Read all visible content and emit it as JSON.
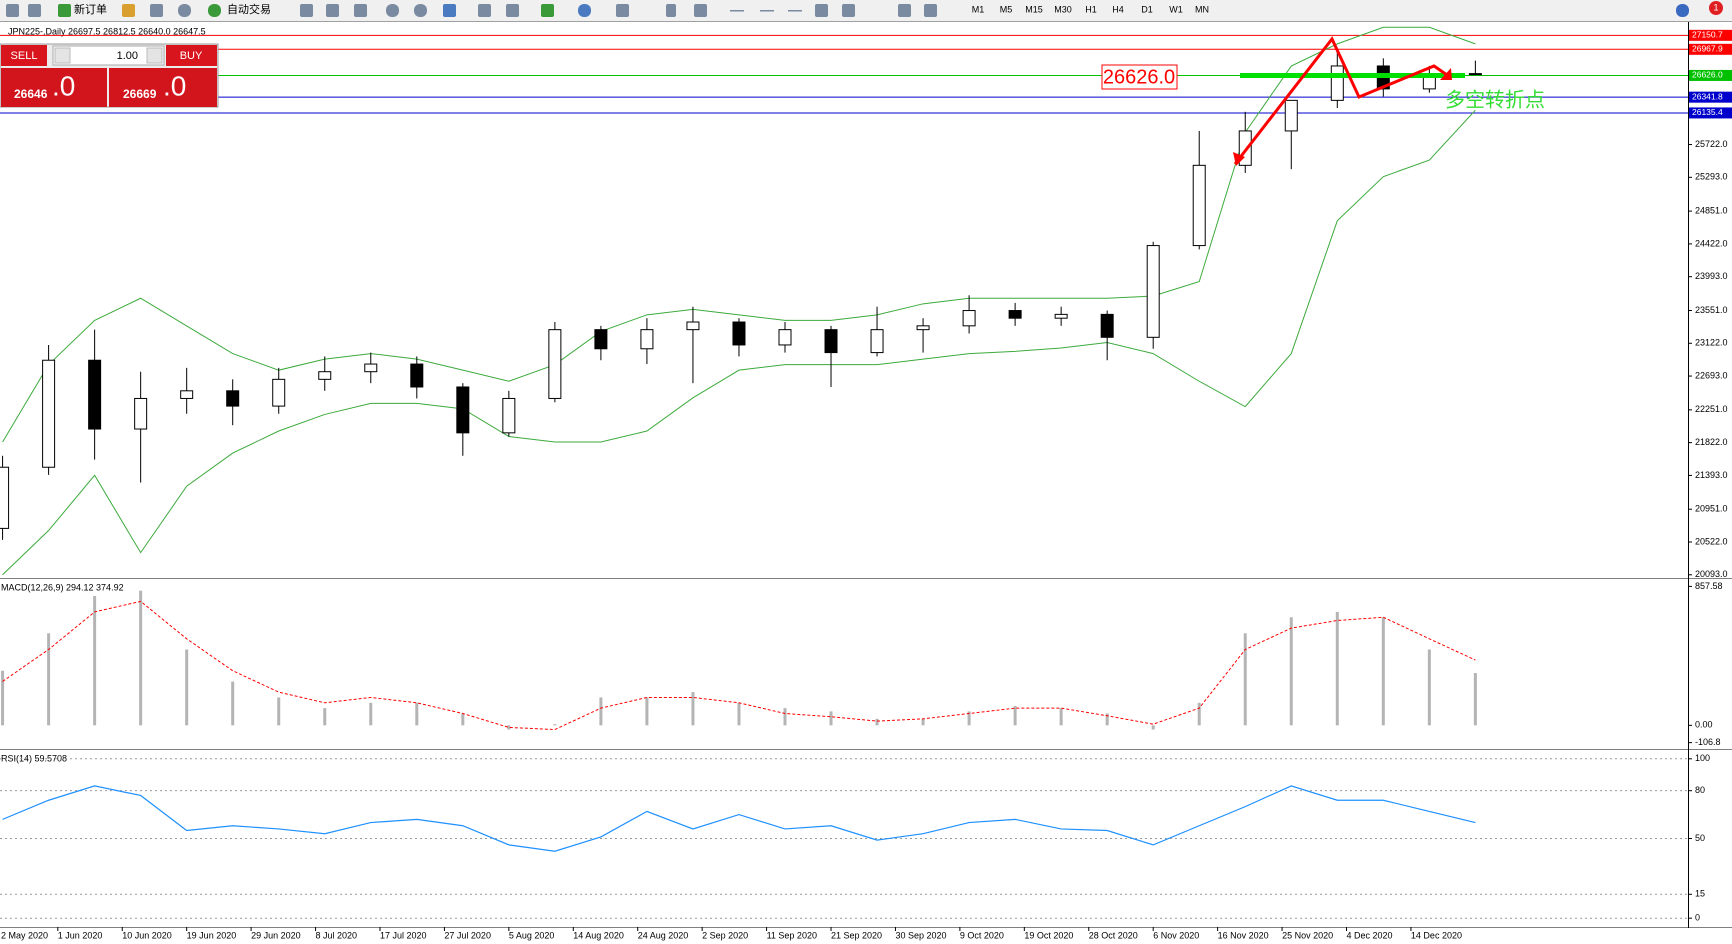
{
  "toolbar": {
    "new_order": "新订单",
    "auto_trading": "自动交易",
    "timeframes": [
      "M1",
      "M5",
      "M15",
      "M30",
      "H1",
      "H4",
      "D1",
      "W1",
      "MN"
    ],
    "notifications": "1"
  },
  "trade_panel": {
    "sell": "SELL",
    "buy": "BUY",
    "lots": "1.00",
    "bid": {
      "main": "26646",
      "fraction": ".0"
    },
    "ask": {
      "main": "26669",
      "fraction": ".0"
    }
  },
  "annotations": [
    {
      "text": "26626.0",
      "color": "#ff0000"
    },
    {
      "text": "多空转折点",
      "color": "#33dd33"
    }
  ],
  "chart_data": [
    {
      "type": "candlestick",
      "title": "JPN225-,Daily  26697.5 26812.5 26640.0 26647.5",
      "color": "#000000",
      "x": [
        1,
        6,
        11,
        16,
        21,
        26,
        31,
        36,
        41,
        46,
        51,
        56,
        61,
        66,
        71,
        76,
        81,
        86,
        91,
        96,
        101,
        106,
        111,
        116,
        121,
        126,
        131,
        136,
        141,
        146,
        151,
        156,
        161
      ],
      "open": [
        20700,
        21500,
        22900,
        22000,
        22400,
        22500,
        22300,
        22650,
        22750,
        22850,
        22550,
        21950,
        22400,
        23300,
        23050,
        23300,
        23400,
        23100,
        23300,
        23000,
        23300,
        23350,
        23550,
        23450,
        23500,
        23200,
        24400,
        25450,
        25900,
        26300,
        26750,
        26450,
        26650
      ],
      "high": [
        21650,
        23100,
        23300,
        22750,
        22800,
        22650,
        22800,
        22950,
        23000,
        22950,
        22600,
        22500,
        23400,
        23350,
        23450,
        23600,
        23450,
        23400,
        23350,
        23600,
        23450,
        23750,
        23650,
        23600,
        23550,
        24450,
        25900,
        26150,
        26300,
        26970,
        26850,
        26750,
        26820
      ],
      "low": [
        20550,
        21400,
        21600,
        21300,
        22200,
        22050,
        22200,
        22500,
        22600,
        22400,
        21650,
        21900,
        22350,
        22900,
        22850,
        22600,
        22950,
        23000,
        22550,
        22950,
        23000,
        23250,
        23350,
        23350,
        22900,
        23050,
        24350,
        25350,
        25400,
        26200,
        26350,
        26400,
        26640
      ],
      "close": [
        21500,
        22900,
        22000,
        22400,
        22500,
        22300,
        22650,
        22750,
        22850,
        22550,
        21950,
        22400,
        23300,
        23050,
        23300,
        23400,
        23100,
        23300,
        23000,
        23300,
        23350,
        23550,
        23450,
        23500,
        23200,
        24400,
        25450,
        25900,
        26300,
        26750,
        26450,
        26650,
        26650
      ],
      "bands": {
        "color": "#3caa3c",
        "upper": [
          21830,
          22842,
          23421,
          23711,
          23349,
          22987,
          22770,
          22915,
          22987,
          22915,
          22770,
          22625,
          22842,
          23277,
          23494,
          23566,
          23494,
          23421,
          23421,
          23494,
          23638,
          23711,
          23711,
          23711,
          23711,
          23740,
          23928,
          25881,
          26749,
          27039,
          27256,
          27256,
          27039
        ],
        "lower": [
          20093,
          20672,
          21395,
          20383,
          21251,
          21685,
          21974,
          22191,
          22336,
          22336,
          22264,
          21902,
          21830,
          21830,
          21974,
          22408,
          22770,
          22842,
          22842,
          22842,
          22915,
          22987,
          23016,
          23060,
          23132,
          22987,
          22625,
          22293,
          22987,
          24724,
          25302,
          25519,
          26171
        ]
      },
      "levels": [
        {
          "value": 27150.7,
          "color": "#ff0000"
        },
        {
          "value": 26967.9,
          "color": "#ff0000"
        },
        {
          "value": 26626,
          "label": "26626.0",
          "color": "#00c000"
        },
        {
          "value": 26341.8,
          "color": "#0000cc"
        },
        {
          "value": 26135.4,
          "color": "#0000cc"
        }
      ],
      "xlim": [
        0.72,
        184.1
      ],
      "ylim": [
        20064,
        27299
      ],
      "yticks": [
        {
          "value": 20093,
          "label": "20093.0"
        },
        {
          "value": 20522,
          "label": "20522.0"
        },
        {
          "value": 20951,
          "label": "20951.0"
        },
        {
          "value": 21393,
          "label": "21393.0"
        },
        {
          "value": 21822,
          "label": "21822.0"
        },
        {
          "value": 22251,
          "label": "22251.0"
        },
        {
          "value": 22693,
          "label": "22693.0"
        },
        {
          "value": 23122,
          "label": "23122.0"
        },
        {
          "value": 23551,
          "label": "23551.0"
        },
        {
          "value": 23993,
          "label": "23993.0"
        },
        {
          "value": 24422,
          "label": "24422.0"
        },
        {
          "value": 24851,
          "label": "24851.0"
        },
        {
          "value": 25293,
          "label": "25293.0"
        },
        {
          "value": 25722,
          "label": "25722.0"
        }
      ]
    },
    {
      "type": "bar",
      "title": "MACD(12,26,9) 294.12 374.92",
      "color": "#b4b4b4",
      "signal_color": "#ff0000",
      "x": [
        1,
        6,
        11,
        16,
        21,
        26,
        31,
        36,
        41,
        46,
        51,
        56,
        61,
        66,
        71,
        76,
        81,
        86,
        91,
        96,
        101,
        106,
        111,
        116,
        121,
        126,
        131,
        136,
        141,
        146,
        151,
        156,
        161
      ],
      "values": [
        337,
        568,
        798,
        831,
        468,
        270,
        172,
        106,
        139,
        139,
        73,
        -26,
        7,
        172,
        172,
        205,
        139,
        106,
        86,
        40,
        40,
        86,
        119,
        106,
        73,
        -26,
        139,
        568,
        667,
        700,
        667,
        468,
        323
      ],
      "signal": [
        271,
        468,
        700,
        765,
        534,
        337,
        205,
        139,
        172,
        139,
        73,
        -13,
        -26,
        106,
        172,
        172,
        139,
        73,
        53,
        26,
        40,
        73,
        106,
        106,
        59,
        7,
        106,
        468,
        600,
        647,
        667,
        534,
        403
      ],
      "xlim": [
        0.72,
        184.1
      ],
      "ylim": [
        -140,
        897
      ],
      "yticks": [
        857.58,
        {
          "value": 0,
          "label": "0.00"
        },
        -106.8
      ]
    },
    {
      "type": "line",
      "title": "RSI(14) 59.5708",
      "color": "#1e90ff",
      "grid": true,
      "x": [
        1,
        6,
        11,
        16,
        21,
        26,
        31,
        36,
        41,
        46,
        51,
        56,
        61,
        66,
        71,
        76,
        81,
        86,
        91,
        96,
        101,
        106,
        111,
        116,
        121,
        126,
        131,
        136,
        141,
        146,
        151,
        156,
        161
      ],
      "values": [
        62,
        74,
        83,
        77,
        55,
        58,
        56,
        53,
        60,
        62,
        58,
        46,
        42,
        51,
        67,
        56,
        65,
        56,
        58,
        49,
        53,
        60,
        62,
        56,
        55,
        46,
        58,
        70,
        83,
        74,
        74,
        67,
        60
      ],
      "xlim": [
        0.72,
        184.1
      ],
      "ylim": [
        -4.9,
        104.9
      ],
      "yticks": [
        100,
        80,
        50,
        15,
        0
      ],
      "xticks": [
        {
          "value": 0,
          "label": "2 May 2020"
        },
        {
          "value": 7,
          "label": "1 Jun 2020"
        },
        {
          "value": 14,
          "label": "10 Jun 2020"
        },
        {
          "value": 21,
          "label": "19 Jun 2020"
        },
        {
          "value": 28,
          "label": "29 Jun 2020"
        },
        {
          "value": 35,
          "label": "8 Jul 2020"
        },
        {
          "value": 42,
          "label": "17 Jul 2020"
        },
        {
          "value": 49,
          "label": "27 Jul 2020"
        },
        {
          "value": 56,
          "label": "5 Aug 2020"
        },
        {
          "value": 63,
          "label": "14 Aug 2020"
        },
        {
          "value": 70,
          "label": "24 Aug 2020"
        },
        {
          "value": 77,
          "label": "2 Sep 2020"
        },
        {
          "value": 84,
          "label": "11 Sep 2020"
        },
        {
          "value": 91,
          "label": "21 Sep 2020"
        },
        {
          "value": 98,
          "label": "30 Sep 2020"
        },
        {
          "value": 105,
          "label": "9 Oct 2020"
        },
        {
          "value": 112,
          "label": "19 Oct 2020"
        },
        {
          "value": 119,
          "label": "28 Oct 2020"
        },
        {
          "value": 126,
          "label": "6 Nov 2020"
        },
        {
          "value": 133,
          "label": "16 Nov 2020"
        },
        {
          "value": 140,
          "label": "25 Nov 2020"
        },
        {
          "value": 147,
          "label": "4 Dec 2020"
        },
        {
          "value": 154,
          "label": "14 Dec 2020"
        }
      ]
    }
  ]
}
